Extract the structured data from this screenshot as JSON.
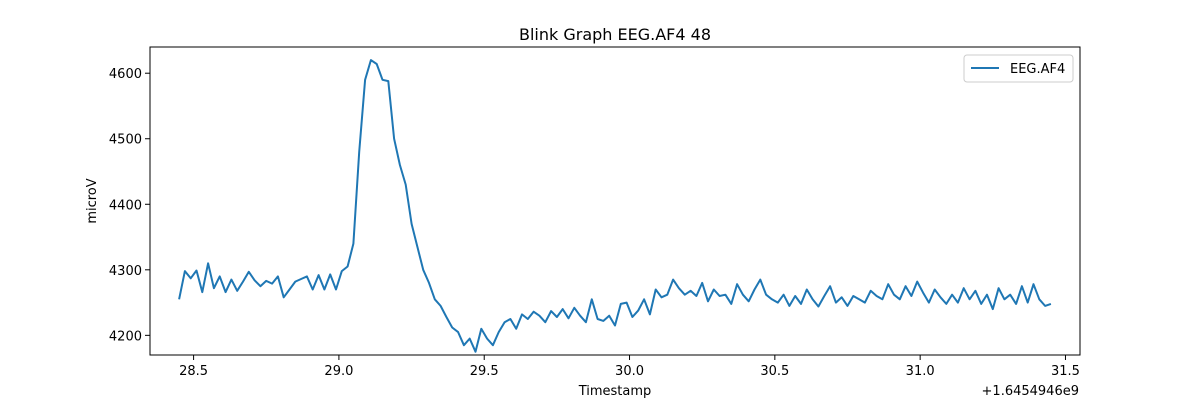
{
  "chart_data": {
    "type": "line",
    "title": "Blink Graph EEG.AF4 48",
    "xlabel": "Timestamp",
    "ylabel": "microV",
    "x_offset_label": "+1.6454946e9",
    "xlim": [
      28.35,
      31.55
    ],
    "ylim": [
      4170,
      4640
    ],
    "xticks": [
      28.5,
      29.0,
      29.5,
      30.0,
      30.5,
      31.0,
      31.5
    ],
    "xtick_labels": [
      "28.5",
      "29.0",
      "29.5",
      "30.0",
      "30.5",
      "31.0",
      "31.5"
    ],
    "yticks": [
      4200,
      4300,
      4400,
      4500,
      4600
    ],
    "ytick_labels": [
      "4200",
      "4300",
      "4400",
      "4500",
      "4600"
    ],
    "grid": false,
    "legend_position": "top-right",
    "series": [
      {
        "name": "EEG.AF4",
        "color": "#1f77b4",
        "x": [
          28.45,
          28.47,
          28.49,
          28.51,
          28.53,
          28.55,
          28.57,
          28.59,
          28.61,
          28.63,
          28.65,
          28.67,
          28.69,
          28.71,
          28.73,
          28.75,
          28.77,
          28.79,
          28.81,
          28.83,
          28.85,
          28.87,
          28.89,
          28.91,
          28.93,
          28.95,
          28.97,
          28.99,
          29.01,
          29.03,
          29.05,
          29.07,
          29.09,
          29.11,
          29.13,
          29.15,
          29.17,
          29.19,
          29.21,
          29.23,
          29.25,
          29.27,
          29.29,
          29.31,
          29.33,
          29.35,
          29.37,
          29.39,
          29.41,
          29.43,
          29.45,
          29.47,
          29.49,
          29.51,
          29.53,
          29.55,
          29.57,
          29.59,
          29.61,
          29.63,
          29.65,
          29.67,
          29.69,
          29.71,
          29.73,
          29.75,
          29.77,
          29.79,
          29.81,
          29.83,
          29.85,
          29.87,
          29.89,
          29.91,
          29.93,
          29.95,
          29.97,
          29.99,
          30.01,
          30.03,
          30.05,
          30.07,
          30.09,
          30.11,
          30.13,
          30.15,
          30.17,
          30.19,
          30.21,
          30.23,
          30.25,
          30.27,
          30.29,
          30.31,
          30.33,
          30.35,
          30.37,
          30.39,
          30.41,
          30.43,
          30.45,
          30.47,
          30.49,
          30.51,
          30.53,
          30.55,
          30.57,
          30.59,
          30.61,
          30.63,
          30.65,
          30.67,
          30.69,
          30.71,
          30.73,
          30.75,
          30.77,
          30.79,
          30.81,
          30.83,
          30.85,
          30.87,
          30.89,
          30.91,
          30.93,
          30.95,
          30.97,
          30.99,
          31.01,
          31.03,
          31.05,
          31.07,
          31.09,
          31.11,
          31.13,
          31.15,
          31.17,
          31.19,
          31.21,
          31.23,
          31.25,
          31.27,
          31.29,
          31.31,
          31.33,
          31.35,
          31.37,
          31.39,
          31.41,
          31.43,
          31.45
        ],
        "values": [
          4255,
          4298,
          4287,
          4299,
          4266,
          4310,
          4272,
          4290,
          4266,
          4285,
          4268,
          4282,
          4297,
          4284,
          4275,
          4283,
          4279,
          4290,
          4258,
          4270,
          4282,
          4286,
          4290,
          4270,
          4292,
          4270,
          4293,
          4270,
          4298,
          4305,
          4340,
          4480,
          4590,
          4620,
          4614,
          4590,
          4588,
          4500,
          4460,
          4430,
          4370,
          4335,
          4300,
          4280,
          4255,
          4245,
          4228,
          4212,
          4205,
          4185,
          4195,
          4175,
          4210,
          4195,
          4185,
          4205,
          4220,
          4225,
          4210,
          4232,
          4225,
          4236,
          4230,
          4220,
          4237,
          4228,
          4240,
          4226,
          4242,
          4230,
          4220,
          4255,
          4225,
          4222,
          4230,
          4215,
          4248,
          4250,
          4228,
          4238,
          4255,
          4232,
          4270,
          4258,
          4262,
          4285,
          4272,
          4262,
          4268,
          4260,
          4280,
          4252,
          4270,
          4260,
          4262,
          4248,
          4278,
          4262,
          4252,
          4270,
          4285,
          4262,
          4255,
          4250,
          4262,
          4245,
          4260,
          4248,
          4270,
          4255,
          4244,
          4260,
          4275,
          4250,
          4258,
          4245,
          4260,
          4255,
          4250,
          4268,
          4260,
          4255,
          4278,
          4262,
          4255,
          4275,
          4260,
          4282,
          4265,
          4250,
          4270,
          4258,
          4248,
          4262,
          4250,
          4272,
          4255,
          4268,
          4248,
          4262,
          4240,
          4272,
          4255,
          4262,
          4248,
          4275,
          4250,
          4278,
          4255,
          4245,
          4248
        ],
        "detail_values_note": ""
      }
    ]
  }
}
